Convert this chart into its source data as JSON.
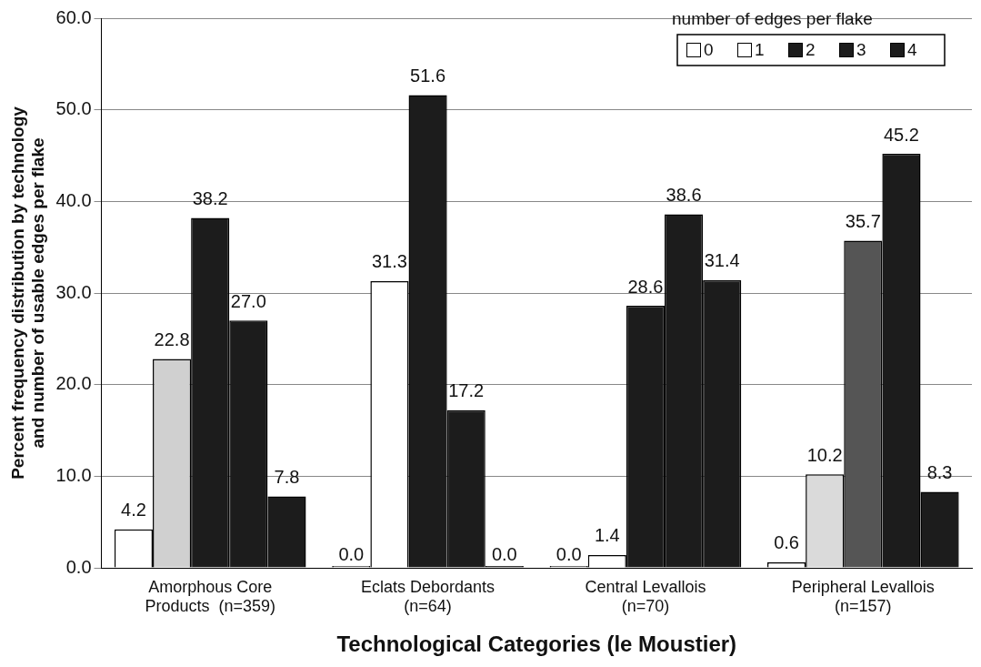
{
  "chart_data": {
    "type": "bar",
    "xlabel": "Technological Categories (le Moustier)",
    "ylabel": "Percent frequency distribution by technology and number of usable edges per flake",
    "categories": [
      "Amorphous Core Products  (n=359)",
      "Eclats Debordants (n=64)",
      "Central Levallois (n=70)",
      "Peripheral Levallois (n=157)"
    ],
    "series": [
      {
        "name": "0",
        "color": "#ffffff",
        "values": [
          4.2,
          0.0,
          0.0,
          0.6
        ],
        "value_labels": [
          "4.2",
          "0.0",
          "0.0",
          "0.6"
        ]
      },
      {
        "name": "1",
        "color": "#ffffff",
        "colors": [
          "#d0d0d0",
          "#ffffff",
          "#ffffff",
          "#dadada"
        ],
        "values": [
          22.8,
          31.3,
          1.4,
          10.2
        ],
        "value_labels": [
          "22.8",
          "31.3",
          "1.4",
          "10.2"
        ]
      },
      {
        "name": "2",
        "color": "#1c1c1c",
        "colors": [
          "#1c1c1c",
          "#1c1c1c",
          "#1c1c1c",
          "#555555"
        ],
        "values": [
          38.2,
          51.6,
          28.6,
          35.7
        ],
        "value_labels": [
          "38.2",
          "51.6",
          "28.6",
          "35.7"
        ]
      },
      {
        "name": "3",
        "color": "#1c1c1c",
        "values": [
          27.0,
          17.2,
          38.6,
          45.2
        ],
        "value_labels": [
          "27.0",
          "17.2",
          "38.6",
          "45.2"
        ]
      },
      {
        "name": "4",
        "color": "#1c1c1c",
        "values": [
          7.8,
          0.0,
          31.4,
          8.3
        ],
        "value_labels": [
          "7.8",
          "0.0",
          "31.4",
          "8.3"
        ]
      }
    ],
    "legend_title": "number of edges per flake",
    "legend": "top right",
    "ylim": [
      0,
      60
    ],
    "yticks": [
      {
        "value": 0,
        "label": "0.0"
      },
      {
        "value": 10,
        "label": "10.0"
      },
      {
        "value": 20,
        "label": "20.0"
      },
      {
        "value": 30,
        "label": "30.0"
      },
      {
        "value": 40,
        "label": "40.0"
      },
      {
        "value": 50,
        "label": "50.0"
      },
      {
        "value": 60,
        "label": "60.0"
      }
    ],
    "grid": "y"
  }
}
